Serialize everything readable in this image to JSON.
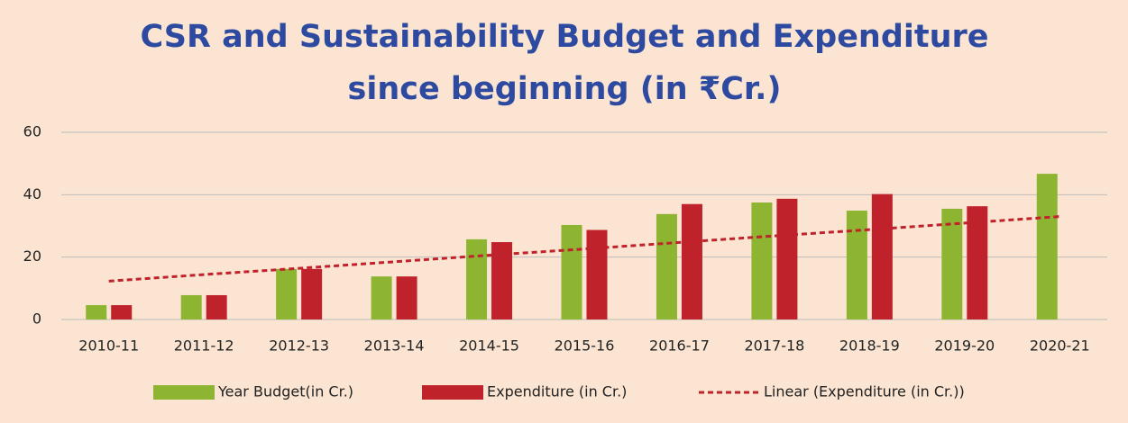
{
  "chart_data": {
    "type": "bar",
    "title": [
      "CSR and Sustainability Budget and Expenditure",
      "since beginning (in ₹Cr.)"
    ],
    "categories": [
      "2010-11",
      "2011-12",
      "2012-13",
      "2013-14",
      "2014-15",
      "2015-16",
      "2016-17",
      "2017-18",
      "2018-19",
      "2019-20",
      "2020-21"
    ],
    "series": [
      {
        "name": "Year Budget(in Cr.)",
        "color": "#8db531",
        "type": "bar",
        "values": [
          4.6,
          7.8,
          16.2,
          13.8,
          25.7,
          30.3,
          33.8,
          37.5,
          34.9,
          35.5,
          46.7
        ]
      },
      {
        "name": "Expenditure (in Cr.)",
        "color": "#c0222b",
        "type": "bar",
        "values": [
          4.6,
          7.8,
          16.2,
          13.8,
          24.8,
          28.7,
          37,
          38.7,
          40.2,
          36.3,
          null
        ]
      },
      {
        "name": "Linear (Expenditure (in Cr.))",
        "color": "#c0222b",
        "type": "trend",
        "values": [
          12.3,
          14.4,
          16.4,
          18.5,
          20.6,
          22.6,
          24.7,
          26.8,
          28.8,
          30.9,
          33.0
        ]
      }
    ],
    "ylim": [
      0,
      60
    ],
    "yticks": [
      0,
      20,
      40,
      60
    ],
    "grid": true,
    "legend": "bottom"
  }
}
